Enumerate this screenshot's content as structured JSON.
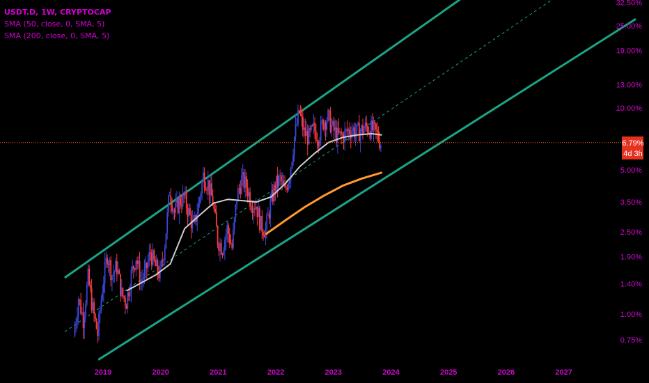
{
  "legend": {
    "symbol": "USDT.D, 1W, CRYPTOCAP",
    "sma50": "SMA (50, close, 0, SMA, 5)",
    "sma200": "SMA (200, close, 0, SMA, 5)"
  },
  "price_tag": {
    "value": "6.79%",
    "countdown": "4d 3h"
  },
  "colors": {
    "background": "#000000",
    "label_magenta": "#c70ac7",
    "channel": "#1aa586",
    "up_candle": "#3b46d9",
    "down_candle": "#ff3a3a",
    "sma50": "#cfcfcf",
    "sma200": "#ff9a2e",
    "price_line": "#ff5d1e",
    "price_tag_bg": "#e8301e"
  },
  "chart_data": {
    "type": "candlestick",
    "y_scale": "log",
    "x_axis_ticks": [
      "2019",
      "2020",
      "2021",
      "2022",
      "2023",
      "2024",
      "2025",
      "2026",
      "2027"
    ],
    "y_axis_ticks": [
      "32.50%",
      "25.00%",
      "19.00%",
      "13.00%",
      "10.00%",
      "5.00%",
      "3.50%",
      "2.50%",
      "1.90%",
      "1.40%",
      "1.00%",
      "0.75%"
    ],
    "y_axis_values": [
      32.5,
      25.0,
      19.0,
      13.0,
      10.0,
      5.0,
      3.5,
      2.5,
      1.9,
      1.4,
      1.0,
      0.75
    ],
    "last_price": 6.79,
    "close_path": [
      [
        "2018-07",
        0.78
      ],
      [
        "2018-08",
        1.2
      ],
      [
        "2018-09",
        0.95
      ],
      [
        "2018-10",
        1.5
      ],
      [
        "2018-11",
        1.05
      ],
      [
        "2018-12",
        0.8
      ],
      [
        "2019-01",
        1.35
      ],
      [
        "2019-02",
        1.95
      ],
      [
        "2019-03",
        1.55
      ],
      [
        "2019-04",
        1.7
      ],
      [
        "2019-05",
        1.25
      ],
      [
        "2019-06",
        1.15
      ],
      [
        "2019-07",
        1.55
      ],
      [
        "2019-08",
        1.9
      ],
      [
        "2019-09",
        1.45
      ],
      [
        "2019-10",
        1.6
      ],
      [
        "2019-11",
        2.0
      ],
      [
        "2019-12",
        1.7
      ],
      [
        "2020-01",
        1.55
      ],
      [
        "2020-02",
        2.2
      ],
      [
        "2020-03",
        4.0
      ],
      [
        "2020-04",
        3.1
      ],
      [
        "2020-05",
        3.5
      ],
      [
        "2020-06",
        3.7
      ],
      [
        "2020-07",
        3.1
      ],
      [
        "2020-08",
        2.6
      ],
      [
        "2020-09",
        3.4
      ],
      [
        "2020-10",
        4.7
      ],
      [
        "2020-11",
        4.3
      ],
      [
        "2020-12",
        3.5
      ],
      [
        "2021-01",
        2.3
      ],
      [
        "2021-02",
        2.1
      ],
      [
        "2021-03",
        2.6
      ],
      [
        "2021-04",
        2.1
      ],
      [
        "2021-05",
        3.7
      ],
      [
        "2021-06",
        4.5
      ],
      [
        "2021-07",
        4.2
      ],
      [
        "2021-08",
        3.5
      ],
      [
        "2021-09",
        3.4
      ],
      [
        "2021-10",
        2.7
      ],
      [
        "2021-11",
        2.55
      ],
      [
        "2021-12",
        3.4
      ],
      [
        "2022-01",
        4.2
      ],
      [
        "2022-02",
        4.5
      ],
      [
        "2022-03",
        3.9
      ],
      [
        "2022-04",
        4.8
      ],
      [
        "2022-05",
        7.2
      ],
      [
        "2022-06",
        9.6
      ],
      [
        "2022-07",
        7.6
      ],
      [
        "2022-08",
        7.2
      ],
      [
        "2022-09",
        7.9
      ],
      [
        "2022-10",
        7.3
      ],
      [
        "2022-11",
        8.6
      ],
      [
        "2022-12",
        9.0
      ],
      [
        "2023-01",
        7.9
      ],
      [
        "2023-02",
        7.3
      ],
      [
        "2023-03",
        7.3
      ],
      [
        "2023-04",
        7.7
      ],
      [
        "2023-05",
        7.9
      ],
      [
        "2023-06",
        7.6
      ],
      [
        "2023-07",
        7.8
      ],
      [
        "2023-08",
        8.1
      ],
      [
        "2023-09",
        7.9
      ],
      [
        "2023-10",
        7.6
      ],
      [
        "2023-11",
        6.79
      ]
    ],
    "sma50": [
      [
        "2019-06",
        1.3
      ],
      [
        "2019-12",
        1.55
      ],
      [
        "2020-03",
        1.75
      ],
      [
        "2020-06",
        2.6
      ],
      [
        "2020-09",
        3.0
      ],
      [
        "2020-12",
        3.45
      ],
      [
        "2021-03",
        3.6
      ],
      [
        "2021-06",
        3.55
      ],
      [
        "2021-09",
        3.5
      ],
      [
        "2021-12",
        3.7
      ],
      [
        "2022-03",
        4.3
      ],
      [
        "2022-06",
        5.2
      ],
      [
        "2022-09",
        6.0
      ],
      [
        "2022-12",
        6.8
      ],
      [
        "2023-03",
        7.2
      ],
      [
        "2023-06",
        7.4
      ],
      [
        "2023-09",
        7.5
      ],
      [
        "2023-11",
        7.4
      ]
    ],
    "sma200": [
      [
        "2021-11",
        2.45
      ],
      [
        "2022-03",
        2.85
      ],
      [
        "2022-07",
        3.3
      ],
      [
        "2022-11",
        3.75
      ],
      [
        "2023-03",
        4.2
      ],
      [
        "2023-07",
        4.55
      ],
      [
        "2023-11",
        4.85
      ]
    ],
    "channel_upper": [
      [
        "2018-05",
        1.5
      ],
      [
        "2025-08",
        40.0
      ]
    ],
    "channel_lower": [
      [
        "2018-12",
        0.6
      ],
      [
        "2028-04",
        27.0
      ]
    ],
    "channel_mid": [
      [
        "2018-05",
        0.82
      ],
      [
        "2027-02",
        38.0
      ]
    ]
  }
}
